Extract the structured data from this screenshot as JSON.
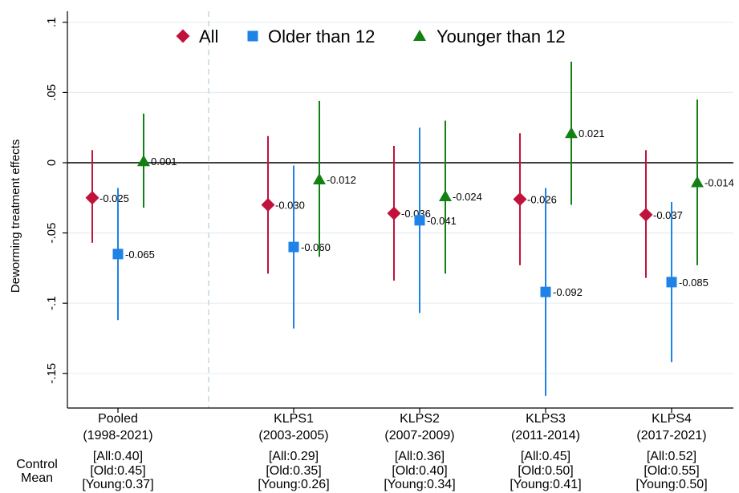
{
  "chart_data": {
    "type": "scatter",
    "ylabel": "Deworming treatment effects",
    "ylim": [
      -0.175,
      0.11
    ],
    "yticks": [
      -0.15,
      -0.1,
      -0.05,
      0,
      0.05,
      0.1
    ],
    "ytick_labels": [
      "-.15",
      "-.1",
      "-.05",
      "0",
      ".05",
      ".1"
    ],
    "grid": true,
    "legend_position": "top",
    "control_mean_label": [
      "Control",
      "Mean"
    ],
    "groups": [
      {
        "name": "Pooled",
        "period": "(1998-2021)",
        "control": [
          "[All:0.40]",
          "[Old:0.45]",
          "[Young:0.37]"
        ]
      },
      {
        "name": "KLPS1",
        "period": "(2003-2005)",
        "control": [
          "[All:0.29]",
          "[Old:0.35]",
          "[Young:0.26]"
        ]
      },
      {
        "name": "KLPS2",
        "period": "(2007-2009)",
        "control": [
          "[All:0.36]",
          "[Old:0.40]",
          "[Young:0.34]"
        ]
      },
      {
        "name": "KLPS3",
        "period": "(2011-2014)",
        "control": [
          "[All:0.45]",
          "[Old:0.50]",
          "[Young:0.41]"
        ]
      },
      {
        "name": "KLPS4",
        "period": "(2017-2021)",
        "control": [
          "[All:0.52]",
          "[Old:0.55]",
          "[Young:0.50]"
        ]
      }
    ],
    "series": [
      {
        "name": "All",
        "marker": "diamond",
        "color": "#c1123b",
        "values": [
          -0.025,
          -0.03,
          -0.036,
          -0.026,
          -0.037
        ],
        "labels": [
          "-0.025",
          "-0.030",
          "-0.036",
          "-0.026",
          "-0.037"
        ],
        "ci_low": [
          -0.057,
          -0.079,
          -0.084,
          -0.073,
          -0.082
        ],
        "ci_high": [
          0.009,
          0.019,
          0.012,
          0.021,
          0.009
        ]
      },
      {
        "name": "Older than 12",
        "marker": "square",
        "color": "#1e82e6",
        "values": [
          -0.065,
          -0.06,
          -0.041,
          -0.092,
          -0.085
        ],
        "labels": [
          "-0.065",
          "-0.060",
          "-0.041",
          "-0.092",
          "-0.085"
        ],
        "ci_low": [
          -0.112,
          -0.118,
          -0.107,
          -0.166,
          -0.142
        ],
        "ci_high": [
          -0.018,
          -0.002,
          0.025,
          -0.018,
          -0.028
        ]
      },
      {
        "name": "Younger than 12",
        "marker": "triangle",
        "color": "#128012",
        "values": [
          0.001,
          -0.012,
          -0.024,
          0.021,
          -0.014
        ],
        "labels": [
          "0.001",
          "-0.012",
          "-0.024",
          "0.021",
          "-0.014"
        ],
        "ci_low": [
          -0.032,
          -0.067,
          -0.079,
          -0.03,
          -0.073
        ],
        "ci_high": [
          0.035,
          0.044,
          0.03,
          0.072,
          0.045
        ]
      }
    ]
  }
}
